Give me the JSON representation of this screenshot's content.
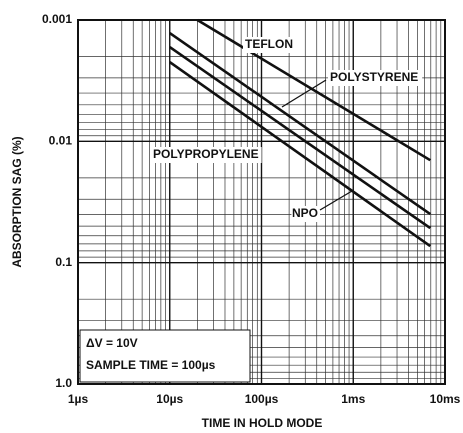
{
  "chart_data": {
    "type": "line",
    "xlabel": "TIME IN HOLD MODE",
    "ylabel": "ABSORPTION SAG (%)",
    "xscale": "log",
    "yscale": "log",
    "y_reversed": true,
    "grid": true,
    "xlim": [
      1e-06,
      0.01
    ],
    "xticks": [
      {
        "value": 1e-06,
        "label": "1µs"
      },
      {
        "value": 1e-05,
        "label": "10µs"
      },
      {
        "value": 0.0001,
        "label": "100µs"
      },
      {
        "value": 0.001,
        "label": "1ms"
      },
      {
        "value": 0.01,
        "label": "10ms"
      }
    ],
    "ylim": [
      0.001,
      1
    ],
    "yticks": [
      0.001,
      0.01,
      0.1,
      {
        "value": 1,
        "label": "1.0"
      }
    ],
    "annotations": [
      "ΔV = 10V",
      "SAMPLE TIME = 100µs"
    ],
    "series": [
      {
        "name": "TEFLON",
        "color": "#111111",
        "x": [
          2e-05,
          0.0069
        ],
        "values": [
          0.001,
          0.0143
        ]
      },
      {
        "name": "POLYSTYRENE",
        "color": "#111111",
        "x": [
          1e-05,
          0.0069
        ],
        "values": [
          0.00128,
          0.0398
        ]
      },
      {
        "name": "POLYPROPYLENE",
        "color": "#111111",
        "x": [
          1e-05,
          0.0069
        ],
        "values": [
          0.00167,
          0.0519
        ]
      },
      {
        "name": "NPO",
        "color": "#111111",
        "x": [
          1e-05,
          0.0069
        ],
        "values": [
          0.00222,
          0.073
        ]
      }
    ]
  }
}
